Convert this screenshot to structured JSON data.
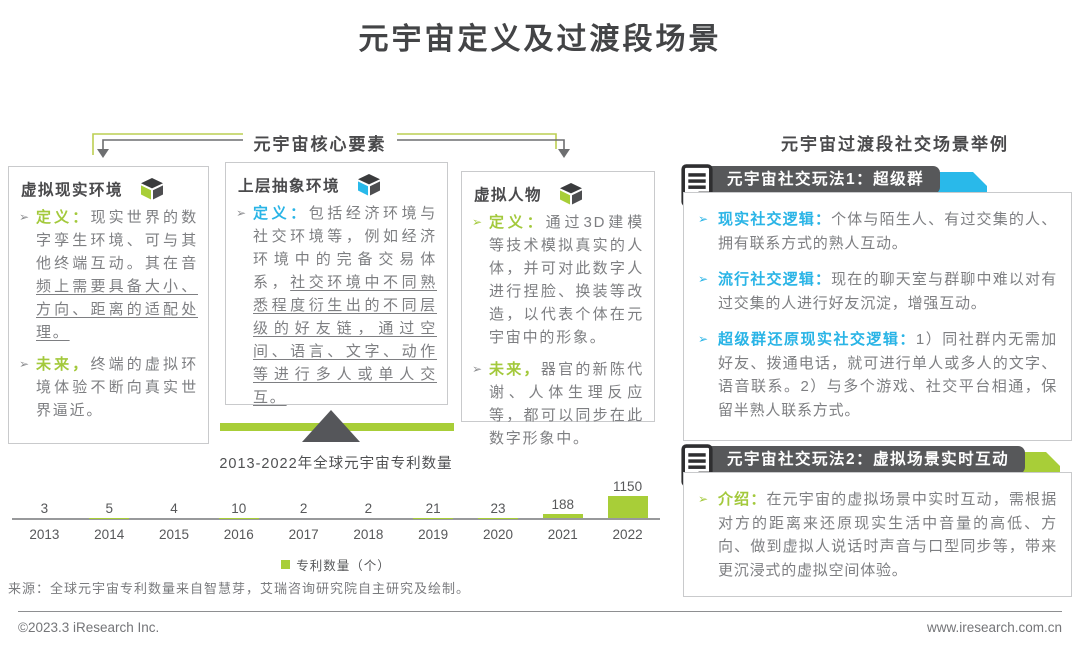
{
  "page": {
    "title": "元宇宙定义及过渡段场景",
    "source": "来源：全球元宇宙专利数量来自智慧芽，艾瑞咨询研究院自主研究及绘制。",
    "footer_left": "©2023.3 iResearch Inc.",
    "footer_right": "www.iresearch.com.cn"
  },
  "colors": {
    "accent_green": "#a8ce38",
    "accent_cyan": "#29b9ea",
    "banner_gray": "#57585a",
    "title_dark": "#434446",
    "body_gray": "#7e7f82"
  },
  "left_section": {
    "header": "元宇宙核心要素",
    "boxes": [
      {
        "title": "虚拟现实环境",
        "icon": "cube-icon",
        "bullets": [
          {
            "marker": "➢",
            "label": "定义：",
            "pre": "现实世界的数字孪生环境、可与其他终端互动。其在音",
            "underlined": "频上需要具备大小、方向、距离的适配处理。"
          },
          {
            "marker": "➢",
            "label": "未来，",
            "pre": "终端的虚拟环境体验不断向真实世界逼近。",
            "underlined": ""
          }
        ]
      },
      {
        "title": "上层抽象环境",
        "icon": "cube-icon",
        "bullets": [
          {
            "marker": "➢",
            "label": "定义：",
            "pre": "包括经济环境与社交环境等，例如经济环境中的完备交易体系，",
            "underlined": "社交环境中不同熟悉程度衍生出的不同层级的好友链，通过空间、语言、文字、动作等进行多人或单人交互。"
          }
        ]
      },
      {
        "title": "虚拟人物",
        "icon": "cube-icon",
        "bullets": [
          {
            "marker": "➢",
            "label": "定义：",
            "pre": "通过3D建模等技术模拟真实的人体，并可对此数字人进行捏脸、换装等改造，以代表个体在元宇宙中的形象。",
            "underlined": ""
          },
          {
            "marker": "➢",
            "label": "未来，",
            "pre": "器官的新陈代谢、人体生理反应等，都可以同步在此数字形象中。",
            "underlined": ""
          }
        ]
      }
    ]
  },
  "right_section": {
    "header": "元宇宙过渡段社交场景举例",
    "boxes": [
      {
        "header": "元宇宙社交玩法1：超级群",
        "icon": "document-icon",
        "bullets": [
          {
            "marker": "➢",
            "label": "现实社交逻辑：",
            "text": "个体与陌生人、有过交集的人、拥有联系方式的熟人互动。"
          },
          {
            "marker": "➢",
            "label": "流行社交逻辑：",
            "text": "现在的聊天室与群聊中难以对有过交集的人进行好友沉淀，增强互动。"
          },
          {
            "marker": "➢",
            "label": "超级群还原现实社交逻辑：",
            "text": "1）同社群内无需加好友、拨通电话，就可进行单人或多人的文字、语音联系。2）与多个游戏、社交平台相通，保留半熟人联系方式。"
          }
        ]
      },
      {
        "header": "元宇宙社交玩法2：虚拟场景实时互动",
        "icon": "document-icon",
        "bullets": [
          {
            "marker": "➢",
            "label": "介绍：",
            "text": "在元宇宙的虚拟场景中实时互动，需根据对方的距离来还原现实生活中音量的高低、方向、做到虚拟人说话时声音与口型同步等，带来更沉浸式的虚拟空间体验。"
          }
        ]
      }
    ]
  },
  "chart_data": {
    "type": "bar",
    "title": "2013-2022年全球元宇宙专利数量",
    "categories": [
      "2013",
      "2014",
      "2015",
      "2016",
      "2017",
      "2018",
      "2019",
      "2020",
      "2021",
      "2022"
    ],
    "values": [
      3,
      5,
      4,
      10,
      2,
      2,
      21,
      23,
      188,
      1150
    ],
    "legend": "专利数量（个）",
    "bar_color": "#a8ce38",
    "xlabel": "",
    "ylabel": "",
    "ylim": [
      0,
      1150
    ],
    "grid": false,
    "legend_position": "bottom"
  }
}
